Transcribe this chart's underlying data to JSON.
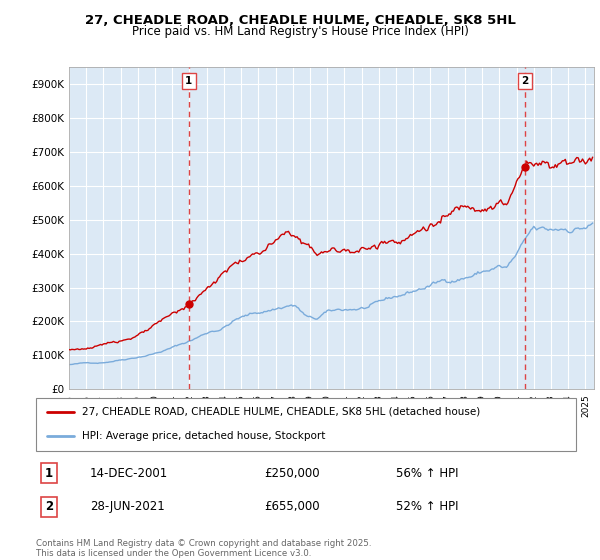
{
  "title": "27, CHEADLE ROAD, CHEADLE HULME, CHEADLE, SK8 5HL",
  "subtitle": "Price paid vs. HM Land Registry's House Price Index (HPI)",
  "ylim": [
    0,
    950000
  ],
  "yticks": [
    0,
    100000,
    200000,
    300000,
    400000,
    500000,
    600000,
    700000,
    800000,
    900000
  ],
  "ytick_labels": [
    "£0",
    "£100K",
    "£200K",
    "£300K",
    "£400K",
    "£500K",
    "£600K",
    "£700K",
    "£800K",
    "£900K"
  ],
  "line1_color": "#cc0000",
  "line2_color": "#7aabdb",
  "plot_bg_color": "#dce9f5",
  "marker1_date": 2001.96,
  "marker1_price": 250000,
  "marker2_date": 2021.49,
  "marker2_price": 655000,
  "vline_color": "#dd4444",
  "legend_line1": "27, CHEADLE ROAD, CHEADLE HULME, CHEADLE, SK8 5HL (detached house)",
  "legend_line2": "HPI: Average price, detached house, Stockport",
  "note1_num": "1",
  "note1_date": "14-DEC-2001",
  "note1_price": "£250,000",
  "note1_hpi": "56% ↑ HPI",
  "note2_num": "2",
  "note2_date": "28-JUN-2021",
  "note2_price": "£655,000",
  "note2_hpi": "52% ↑ HPI",
  "footer": "Contains HM Land Registry data © Crown copyright and database right 2025.\nThis data is licensed under the Open Government Licence v3.0.",
  "bg_color": "#ffffff",
  "grid_color": "#ffffff"
}
